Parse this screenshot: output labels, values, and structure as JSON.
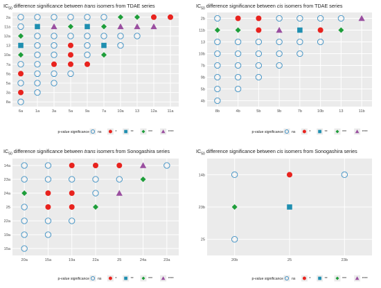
{
  "chart_data": [
    {
      "type": "scatter",
      "title_pre": "IC",
      "title_sub": "50",
      "title_mid": " difference significance between ",
      "title_em": "trans",
      "title_post": " isomers from TDAE series",
      "x": [
        "6a",
        "1a",
        "3a",
        "5a",
        "9a",
        "7a",
        "10a",
        "13",
        "12a",
        "11a"
      ],
      "y": [
        "8a",
        "3a",
        "5a",
        "9a",
        "7a",
        "10a",
        "13",
        "12a",
        "11a",
        "2a"
      ],
      "points": [
        {
          "x": "6a",
          "y": "2a",
          "sig": "ns"
        },
        {
          "x": "1a",
          "y": "2a",
          "sig": "ns"
        },
        {
          "x": "3a",
          "y": "2a",
          "sig": "ns"
        },
        {
          "x": "5a",
          "y": "2a",
          "sig": "ns"
        },
        {
          "x": "9a",
          "y": "2a",
          "sig": "ns"
        },
        {
          "x": "7a",
          "y": "2a",
          "sig": "ns"
        },
        {
          "x": "10a",
          "y": "2a",
          "sig": "***"
        },
        {
          "x": "13",
          "y": "2a",
          "sig": "***"
        },
        {
          "x": "12a",
          "y": "2a",
          "sig": "*"
        },
        {
          "x": "11a",
          "y": "2a",
          "sig": "*"
        },
        {
          "x": "6a",
          "y": "11a",
          "sig": "ns"
        },
        {
          "x": "1a",
          "y": "11a",
          "sig": "**"
        },
        {
          "x": "3a",
          "y": "11a",
          "sig": "****"
        },
        {
          "x": "5a",
          "y": "11a",
          "sig": "***"
        },
        {
          "x": "9a",
          "y": "11a",
          "sig": "**"
        },
        {
          "x": "7a",
          "y": "11a",
          "sig": "***"
        },
        {
          "x": "10a",
          "y": "11a",
          "sig": "****"
        },
        {
          "x": "13",
          "y": "11a",
          "sig": "****"
        },
        {
          "x": "12a",
          "y": "11a",
          "sig": "****"
        },
        {
          "x": "6a",
          "y": "12a",
          "sig": "***"
        },
        {
          "x": "1a",
          "y": "12a",
          "sig": "ns"
        },
        {
          "x": "3a",
          "y": "12a",
          "sig": "ns"
        },
        {
          "x": "5a",
          "y": "12a",
          "sig": "ns"
        },
        {
          "x": "9a",
          "y": "12a",
          "sig": "ns"
        },
        {
          "x": "7a",
          "y": "12a",
          "sig": "ns"
        },
        {
          "x": "10a",
          "y": "12a",
          "sig": "ns"
        },
        {
          "x": "13",
          "y": "12a",
          "sig": "ns"
        },
        {
          "x": "6a",
          "y": "13",
          "sig": "**"
        },
        {
          "x": "1a",
          "y": "13",
          "sig": "ns"
        },
        {
          "x": "3a",
          "y": "13",
          "sig": "ns"
        },
        {
          "x": "5a",
          "y": "13",
          "sig": "*"
        },
        {
          "x": "9a",
          "y": "13",
          "sig": "ns"
        },
        {
          "x": "7a",
          "y": "13",
          "sig": "**"
        },
        {
          "x": "10a",
          "y": "13",
          "sig": "ns"
        },
        {
          "x": "6a",
          "y": "10a",
          "sig": "***"
        },
        {
          "x": "1a",
          "y": "10a",
          "sig": "ns"
        },
        {
          "x": "3a",
          "y": "10a",
          "sig": "ns"
        },
        {
          "x": "5a",
          "y": "10a",
          "sig": "*"
        },
        {
          "x": "9a",
          "y": "10a",
          "sig": "ns"
        },
        {
          "x": "7a",
          "y": "10a",
          "sig": "***"
        },
        {
          "x": "6a",
          "y": "7a",
          "sig": "ns"
        },
        {
          "x": "1a",
          "y": "7a",
          "sig": "ns"
        },
        {
          "x": "3a",
          "y": "7a",
          "sig": "*"
        },
        {
          "x": "5a",
          "y": "7a",
          "sig": "*"
        },
        {
          "x": "9a",
          "y": "7a",
          "sig": "*"
        },
        {
          "x": "6a",
          "y": "9a",
          "sig": "*"
        },
        {
          "x": "1a",
          "y": "9a",
          "sig": "ns"
        },
        {
          "x": "3a",
          "y": "9a",
          "sig": "ns"
        },
        {
          "x": "5a",
          "y": "9a",
          "sig": "ns"
        },
        {
          "x": "6a",
          "y": "5a",
          "sig": "ns"
        },
        {
          "x": "1a",
          "y": "5a",
          "sig": "ns"
        },
        {
          "x": "3a",
          "y": "5a",
          "sig": "ns"
        },
        {
          "x": "6a",
          "y": "3a",
          "sig": "*"
        },
        {
          "x": "1a",
          "y": "3a",
          "sig": "ns"
        },
        {
          "x": "6a",
          "y": "8a",
          "sig": "ns"
        }
      ],
      "legend_title": "p-value significance"
    },
    {
      "type": "scatter",
      "title_pre": "IC",
      "title_sub": "50",
      "title_mid": " difference significance between ",
      "title_em": "cis",
      "title_post": " isomers from TDAE series",
      "x": [
        "8b",
        "4b",
        "5b",
        "9b",
        "7b",
        "10b",
        "13",
        "11b"
      ],
      "y": [
        "4b",
        "5b",
        "9b",
        "7b",
        "10b",
        "13",
        "11b",
        "2b"
      ],
      "points": [
        {
          "x": "8b",
          "y": "2b",
          "sig": "ns"
        },
        {
          "x": "4b",
          "y": "2b",
          "sig": "*"
        },
        {
          "x": "5b",
          "y": "2b",
          "sig": "*"
        },
        {
          "x": "9b",
          "y": "2b",
          "sig": "ns"
        },
        {
          "x": "7b",
          "y": "2b",
          "sig": "ns"
        },
        {
          "x": "10b",
          "y": "2b",
          "sig": "ns"
        },
        {
          "x": "13",
          "y": "2b",
          "sig": "ns"
        },
        {
          "x": "11b",
          "y": "2b",
          "sig": "****"
        },
        {
          "x": "8b",
          "y": "11b",
          "sig": "***"
        },
        {
          "x": "4b",
          "y": "11b",
          "sig": "***"
        },
        {
          "x": "5b",
          "y": "11b",
          "sig": "*"
        },
        {
          "x": "9b",
          "y": "11b",
          "sig": "****"
        },
        {
          "x": "7b",
          "y": "11b",
          "sig": "**"
        },
        {
          "x": "10b",
          "y": "11b",
          "sig": "*"
        },
        {
          "x": "13",
          "y": "11b",
          "sig": "***"
        },
        {
          "x": "8b",
          "y": "13",
          "sig": "ns"
        },
        {
          "x": "4b",
          "y": "13",
          "sig": "ns"
        },
        {
          "x": "5b",
          "y": "13",
          "sig": "ns"
        },
        {
          "x": "9b",
          "y": "13",
          "sig": "ns"
        },
        {
          "x": "7b",
          "y": "13",
          "sig": "ns"
        },
        {
          "x": "10b",
          "y": "13",
          "sig": "ns"
        },
        {
          "x": "8b",
          "y": "10b",
          "sig": "ns"
        },
        {
          "x": "4b",
          "y": "10b",
          "sig": "ns"
        },
        {
          "x": "5b",
          "y": "10b",
          "sig": "ns"
        },
        {
          "x": "9b",
          "y": "10b",
          "sig": "ns"
        },
        {
          "x": "7b",
          "y": "10b",
          "sig": "ns"
        },
        {
          "x": "8b",
          "y": "7b",
          "sig": "ns"
        },
        {
          "x": "4b",
          "y": "7b",
          "sig": "ns"
        },
        {
          "x": "5b",
          "y": "7b",
          "sig": "ns"
        },
        {
          "x": "9b",
          "y": "7b",
          "sig": "ns"
        },
        {
          "x": "8b",
          "y": "9b",
          "sig": "ns"
        },
        {
          "x": "4b",
          "y": "9b",
          "sig": "ns"
        },
        {
          "x": "5b",
          "y": "9b",
          "sig": "ns"
        },
        {
          "x": "8b",
          "y": "5b",
          "sig": "ns"
        },
        {
          "x": "4b",
          "y": "5b",
          "sig": "ns"
        },
        {
          "x": "8b",
          "y": "4b",
          "sig": "ns"
        }
      ],
      "legend_title": "p-value significance"
    },
    {
      "type": "scatter",
      "title_pre": "IC",
      "title_sub": "50",
      "title_mid": " difference significance between ",
      "title_em": "trans",
      "title_post": " isomers from Sonogashira series",
      "x": [
        "20a",
        "15a",
        "19a",
        "22a",
        "25",
        "24a",
        "23a"
      ],
      "y": [
        "15a",
        "19a",
        "22a",
        "25",
        "24a",
        "23a",
        "14a"
      ],
      "points": [
        {
          "x": "20a",
          "y": "14a",
          "sig": "ns"
        },
        {
          "x": "15a",
          "y": "14a",
          "sig": "ns"
        },
        {
          "x": "19a",
          "y": "14a",
          "sig": "*"
        },
        {
          "x": "22a",
          "y": "14a",
          "sig": "*"
        },
        {
          "x": "25",
          "y": "14a",
          "sig": "*"
        },
        {
          "x": "24a",
          "y": "14a",
          "sig": "****"
        },
        {
          "x": "23a",
          "y": "14a",
          "sig": "ns"
        },
        {
          "x": "20a",
          "y": "23a",
          "sig": "ns"
        },
        {
          "x": "15a",
          "y": "23a",
          "sig": "ns"
        },
        {
          "x": "19a",
          "y": "23a",
          "sig": "ns"
        },
        {
          "x": "22a",
          "y": "23a",
          "sig": "ns"
        },
        {
          "x": "25",
          "y": "23a",
          "sig": "ns"
        },
        {
          "x": "24a",
          "y": "23a",
          "sig": "***"
        },
        {
          "x": "20a",
          "y": "24a",
          "sig": "***"
        },
        {
          "x": "15a",
          "y": "24a",
          "sig": "*"
        },
        {
          "x": "19a",
          "y": "24a",
          "sig": "*"
        },
        {
          "x": "22a",
          "y": "24a",
          "sig": "ns"
        },
        {
          "x": "25",
          "y": "24a",
          "sig": "****"
        },
        {
          "x": "20a",
          "y": "25",
          "sig": "ns"
        },
        {
          "x": "15a",
          "y": "25",
          "sig": "*"
        },
        {
          "x": "19a",
          "y": "25",
          "sig": "*"
        },
        {
          "x": "22a",
          "y": "25",
          "sig": "***"
        },
        {
          "x": "20a",
          "y": "22a",
          "sig": "ns"
        },
        {
          "x": "15a",
          "y": "22a",
          "sig": "ns"
        },
        {
          "x": "19a",
          "y": "22a",
          "sig": "ns"
        },
        {
          "x": "20a",
          "y": "19a",
          "sig": "ns"
        },
        {
          "x": "15a",
          "y": "19a",
          "sig": "ns"
        },
        {
          "x": "20a",
          "y": "15a",
          "sig": "ns"
        }
      ],
      "legend_title": "p-value significance"
    },
    {
      "type": "scatter",
      "title_pre": "IC",
      "title_sub": "50",
      "title_mid": " difference significance between ",
      "title_em": "cis",
      "title_post": " isomers from Sonogashira series",
      "x": [
        "20b",
        "25",
        "23b"
      ],
      "y": [
        "25",
        "23b",
        "14b"
      ],
      "points": [
        {
          "x": "20b",
          "y": "14b",
          "sig": "ns"
        },
        {
          "x": "25",
          "y": "14b",
          "sig": "*"
        },
        {
          "x": "23b",
          "y": "14b",
          "sig": "ns"
        },
        {
          "x": "20b",
          "y": "23b",
          "sig": "***"
        },
        {
          "x": "25",
          "y": "23b",
          "sig": "**"
        },
        {
          "x": "20b",
          "y": "25",
          "sig": "ns"
        }
      ],
      "legend_title": "p-value significance"
    }
  ],
  "legend_items": [
    {
      "label": "ns",
      "sig": "ns"
    },
    {
      "label": "*",
      "sig": "*"
    },
    {
      "label": "**",
      "sig": "**"
    },
    {
      "label": "***",
      "sig": "***"
    },
    {
      "label": "****",
      "sig": "****"
    }
  ],
  "colors": {
    "panel_bg": "#ebebeb",
    "grid": "#ffffff",
    "ns": "#3a8fc4",
    "one_star": "#e8231e",
    "two_star": "#1f8fb0",
    "three_star": "#1e9e3a",
    "four_star": "#9a4fa0"
  }
}
